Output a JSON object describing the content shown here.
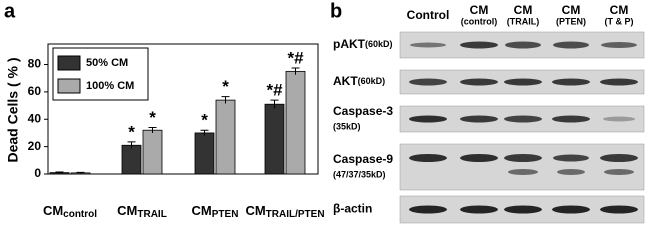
{
  "chart_data": {
    "type": "bar",
    "panel": "a",
    "ylabel": "Dead Cells ( % )",
    "categories": [
      {
        "main": "CM",
        "sub": "control"
      },
      {
        "main": "CM",
        "sub": "TRAIL"
      },
      {
        "main": "CM",
        "sub": "PTEN"
      },
      {
        "main": "CM",
        "sub": "TRAIL/PTEN"
      }
    ],
    "series": [
      {
        "name": "50%  CM",
        "color": "#333333",
        "values": [
          1,
          21,
          30,
          51
        ],
        "errors": [
          0.5,
          2.5,
          2,
          3
        ],
        "markers": [
          null,
          "*",
          "*",
          "*#"
        ]
      },
      {
        "name": "100% CM",
        "color": "#aaaaaa",
        "values": [
          0.8,
          32,
          54,
          75
        ],
        "errors": [
          0.4,
          2,
          2.5,
          2.5
        ],
        "markers": [
          null,
          "*",
          "*",
          "*#"
        ]
      }
    ],
    "ylim": [
      0,
      95
    ],
    "yticks": [
      0,
      20,
      40,
      60,
      80
    ],
    "legend": "upper-left"
  },
  "blot": {
    "panel": "b",
    "columns": [
      {
        "line1": "Control"
      },
      {
        "line1": "CM",
        "line2": "(control)"
      },
      {
        "line1": "CM",
        "line2": "(TRAIL)"
      },
      {
        "line1": "CM",
        "line2": "(PTEN)"
      },
      {
        "line1": "CM",
        "line2": "(T & P)"
      }
    ],
    "rows": [
      {
        "name": "pAKT",
        "size": "(60kD)"
      },
      {
        "name": "AKT",
        "size": "(60kD)"
      },
      {
        "name": "Caspase-3",
        "size": "(35kD)"
      },
      {
        "name": "Caspase-9",
        "size": "(47/37/35kD)"
      },
      {
        "name": "β-actin"
      }
    ]
  }
}
